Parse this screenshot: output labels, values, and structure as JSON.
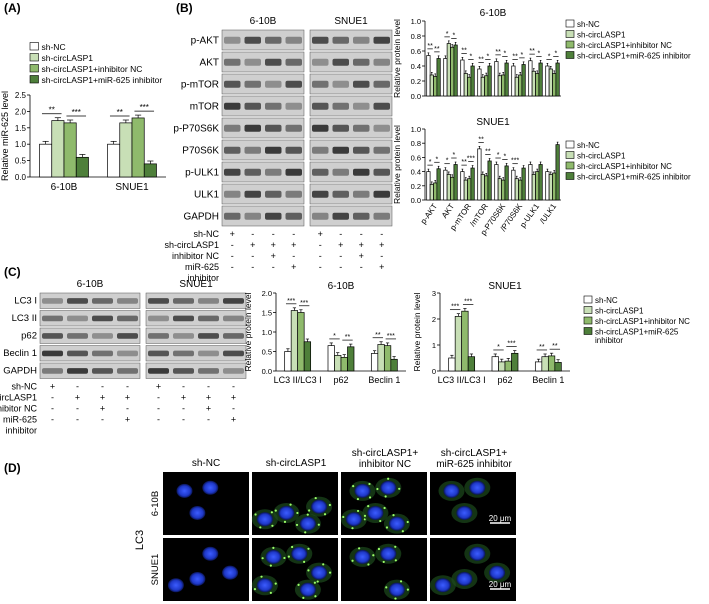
{
  "panels": {
    "A": "(A)",
    "B": "(B)",
    "C": "(C)",
    "D": "(D)"
  },
  "colors": {
    "white": "#ffffff",
    "light_green": "#c8dfb6",
    "mid_green": "#8fba6c",
    "dark_green": "#4e7f3a",
    "blot_bg": "#cfcfcf"
  },
  "legend_groups": [
    "sh-NC",
    "sh-circLASP1",
    "sh-circLASP1+inhibitor NC",
    "sh-circLASP1+miR-625 inhibitor"
  ],
  "legend_groups_c": [
    "sh-NC",
    "sh-circLASP1",
    "sh-circLASP1+inhibitor NC",
    "sh-circLASP1+miR-625",
    "inhibitor"
  ],
  "chart_data": [
    {
      "id": "A",
      "type": "bar",
      "ylabel": "Relative miR-625 level",
      "ylim": [
        0,
        2.5
      ],
      "yticks": [
        "0.0",
        "0.5",
        "1.0",
        "1.5",
        "2.0",
        "2.5"
      ],
      "categories": [
        "6-10B",
        "SNUE1"
      ],
      "series": [
        {
          "name": "sh-NC",
          "values": [
            1.0,
            1.0
          ]
        },
        {
          "name": "sh-circLASP1",
          "values": [
            1.72,
            1.65
          ]
        },
        {
          "name": "sh-circLASP1+inhibitor NC",
          "values": [
            1.65,
            1.8
          ]
        },
        {
          "name": "sh-circLASP1+miR-625 inhibitor",
          "values": [
            0.6,
            0.4
          ]
        }
      ],
      "significance": [
        [
          "**",
          "***"
        ],
        [
          "**",
          "***"
        ]
      ]
    },
    {
      "id": "B1",
      "type": "bar",
      "title": "6-10B",
      "ylabel": "Relative protein level",
      "ylim": [
        0,
        1.0
      ],
      "yticks": [
        "0.0",
        "0.2",
        "0.4",
        "0.6",
        "0.8",
        "1.0"
      ],
      "categories": [
        "p-AKT",
        "AKT",
        "p-mTOR",
        "mTOR",
        "p-P70S6K",
        "P70S6K",
        "p-ULK1",
        "ULK1"
      ],
      "series": [
        {
          "name": "sh-NC",
          "values": [
            0.54,
            0.5,
            0.48,
            0.36,
            0.46,
            0.4,
            0.47,
            0.4
          ]
        },
        {
          "name": "sh-circLASP1",
          "values": [
            0.28,
            0.7,
            0.3,
            0.25,
            0.27,
            0.25,
            0.33,
            0.36
          ]
        },
        {
          "name": "sh-circLASP1+inhibitor NC",
          "values": [
            0.26,
            0.65,
            0.25,
            0.27,
            0.28,
            0.28,
            0.3,
            0.3
          ]
        },
        {
          "name": "sh-circLASP1+miR-625 inhibitor",
          "values": [
            0.5,
            0.68,
            0.4,
            0.4,
            0.44,
            0.42,
            0.44,
            0.44
          ]
        }
      ],
      "significance": [
        "**",
        "**",
        "*",
        "*",
        "**",
        "*",
        "**",
        "*",
        "**",
        "*",
        "**",
        "*",
        "**",
        "*",
        "*",
        "*"
      ]
    },
    {
      "id": "B2",
      "type": "bar",
      "title": "SNUE1",
      "ylabel": "Relative protein level",
      "ylim": [
        0,
        1.0
      ],
      "yticks": [
        "0.0",
        "0.2",
        "0.4",
        "0.6",
        "0.8",
        "1.0"
      ],
      "categories": [
        "p-AKT",
        "AKT",
        "p-mTOR",
        "/mTOR",
        "p-P70S6K",
        "/P70S6K",
        "p-ULK1",
        "/ULK1"
      ],
      "series": [
        {
          "name": "sh-NC",
          "values": [
            0.4,
            0.42,
            0.4,
            0.72,
            0.5,
            0.42,
            0.5,
            0.4
          ]
        },
        {
          "name": "sh-circLASP1",
          "values": [
            0.22,
            0.36,
            0.28,
            0.36,
            0.3,
            0.3,
            0.36,
            0.36
          ]
        },
        {
          "name": "sh-circLASP1+inhibitor NC",
          "values": [
            0.24,
            0.32,
            0.3,
            0.34,
            0.28,
            0.28,
            0.4,
            0.38
          ]
        },
        {
          "name": "sh-circLASP1+miR-625 inhibitor",
          "values": [
            0.44,
            0.5,
            0.45,
            0.55,
            0.48,
            0.45,
            0.5,
            0.78
          ]
        }
      ],
      "significance": [
        "*",
        "*",
        "*",
        "*",
        "**",
        "***",
        "**",
        "**",
        "*",
        "*",
        "***"
      ]
    },
    {
      "id": "C1",
      "type": "bar",
      "title": "6-10B",
      "ylabel": "Relative protein level",
      "ylim": [
        0,
        2.0
      ],
      "yticks": [
        "0.0",
        "0.5",
        "1.0",
        "1.5",
        "2.0"
      ],
      "categories": [
        "LC3 II/LC3 I",
        "p62",
        "Beclin 1"
      ],
      "series": [
        {
          "name": "sh-NC",
          "values": [
            0.5,
            0.65,
            0.45
          ]
        },
        {
          "name": "sh-circLASP1",
          "values": [
            1.55,
            0.4,
            0.68
          ]
        },
        {
          "name": "sh-circLASP1+inhibitor NC",
          "values": [
            1.5,
            0.35,
            0.65
          ]
        },
        {
          "name": "sh-circLASP1+miR-625 inhibitor",
          "values": [
            0.75,
            0.62,
            0.3
          ]
        }
      ],
      "significance": [
        "***",
        "***",
        "*",
        "**",
        "**",
        "***"
      ]
    },
    {
      "id": "C2",
      "type": "bar",
      "title": "SNUE1",
      "ylabel": "Relative protein level",
      "ylim": [
        0,
        3
      ],
      "yticks": [
        "0",
        "1",
        "2",
        "3"
      ],
      "categories": [
        "LC3 II/LC3 I",
        "p62",
        "Beclin 1"
      ],
      "series": [
        {
          "name": "sh-NC",
          "values": [
            0.5,
            0.55,
            0.35
          ]
        },
        {
          "name": "sh-circLASP1",
          "values": [
            2.1,
            0.35,
            0.55
          ]
        },
        {
          "name": "sh-circLASP1+inhibitor NC",
          "values": [
            2.3,
            0.38,
            0.58
          ]
        },
        {
          "name": "sh-circLASP1+miR-625 inhibitor",
          "values": [
            0.55,
            0.68,
            0.33
          ]
        }
      ],
      "significance": [
        "***",
        "***",
        "*",
        "***",
        "**",
        "**"
      ]
    }
  ],
  "blot_b": {
    "cell_lines": [
      "6-10B",
      "SNUE1"
    ],
    "rows": [
      "p-AKT",
      "AKT",
      "p-mTOR",
      "mTOR",
      "p-P70S6K",
      "P70S6K",
      "p-ULK1",
      "ULK1",
      "GAPDH"
    ],
    "conditions": [
      "sh-NC",
      "sh-circLASP1",
      "inhibitor NC",
      "miR-625",
      "inhibitor"
    ],
    "signs": [
      [
        "+",
        "-",
        "-",
        "-",
        "+",
        "-",
        "-",
        "-"
      ],
      [
        "-",
        "+",
        "+",
        "+",
        "-",
        "+",
        "+",
        "+"
      ],
      [
        "-",
        "-",
        "+",
        "-",
        "-",
        "-",
        "+",
        "-"
      ],
      [
        "-",
        "-",
        "-",
        "+",
        "-",
        "-",
        "-",
        "+"
      ]
    ]
  },
  "blot_c": {
    "cell_lines": [
      "6-10B",
      "SNUE1"
    ],
    "rows": [
      "LC3 I",
      "LC3 II",
      "p62",
      "Beclin 1",
      "GAPDH"
    ],
    "conditions": [
      "sh-NC",
      "sh-circLASP1",
      "inhibitor NC",
      "miR-625",
      "inhibitor"
    ],
    "signs": [
      [
        "+",
        "-",
        "-",
        "-",
        "+",
        "-",
        "-",
        "-"
      ],
      [
        "-",
        "+",
        "+",
        "+",
        "-",
        "+",
        "+",
        "+"
      ],
      [
        "-",
        "-",
        "+",
        "-",
        "-",
        "-",
        "+",
        "-"
      ],
      [
        "-",
        "-",
        "-",
        "+",
        "-",
        "-",
        "-",
        "+"
      ]
    ]
  },
  "microscopy": {
    "columns": [
      "sh-NC",
      "sh-circLASP1",
      "sh-circLASP1+",
      "inhibitor NC",
      "sh-circLASP1+",
      "miR-625 inhibitor"
    ],
    "rows": [
      "6-10B",
      "SNUE1"
    ],
    "side_label": "LC3",
    "scale": "20 μm"
  }
}
